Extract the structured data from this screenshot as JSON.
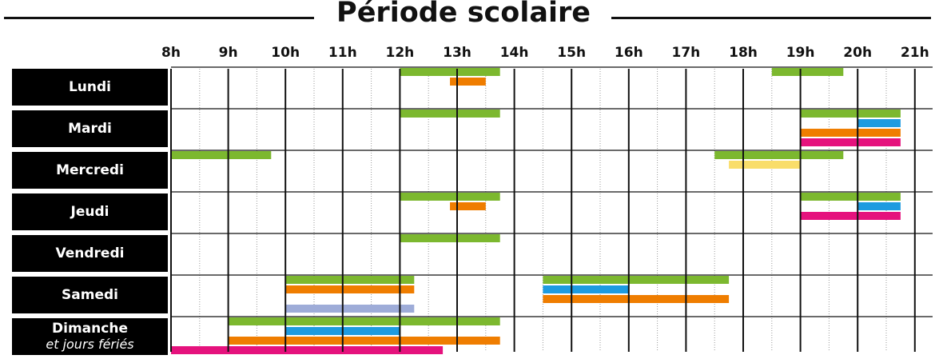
{
  "title": "Période scolaire",
  "chart_data": {
    "type": "gantt",
    "title": "Période scolaire",
    "hours": [
      "8h",
      "9h",
      "10h",
      "11h",
      "12h",
      "13h",
      "14h",
      "15h",
      "16h",
      "17h",
      "18h",
      "19h",
      "20h",
      "21h"
    ],
    "x_range": [
      8,
      21
    ],
    "colors": {
      "green": "#7cb82f",
      "orange": "#ef7d00",
      "blue": "#1e9be0",
      "magenta": "#e5127d",
      "yellow": "#f9dd6a",
      "lavender": "#9eacd8"
    },
    "days": [
      {
        "name": "Lundi",
        "sub": "",
        "bars": [
          {
            "start": 12.0,
            "end": 13.75,
            "color": "green"
          },
          {
            "start": 12.875,
            "end": 13.5,
            "color": "orange"
          },
          {
            "start": 18.5,
            "end": 19.75,
            "color": "green"
          }
        ]
      },
      {
        "name": "Mardi",
        "sub": "",
        "bars": [
          {
            "start": 12.0,
            "end": 13.75,
            "color": "green"
          },
          {
            "start": 19.0,
            "end": 20.75,
            "color": "green"
          },
          {
            "start": 20.0,
            "end": 20.75,
            "color": "blue"
          },
          {
            "start": 19.0,
            "end": 20.75,
            "color": "orange"
          },
          {
            "start": 19.0,
            "end": 20.75,
            "color": "magenta"
          }
        ]
      },
      {
        "name": "Mercredi",
        "sub": "",
        "bars": [
          {
            "start": 8.0,
            "end": 9.75,
            "color": "green"
          },
          {
            "start": 17.5,
            "end": 19.75,
            "color": "green"
          },
          {
            "start": 17.75,
            "end": 19.0,
            "color": "yellow"
          }
        ]
      },
      {
        "name": "Jeudi",
        "sub": "",
        "bars": [
          {
            "start": 12.0,
            "end": 13.75,
            "color": "green"
          },
          {
            "start": 12.875,
            "end": 13.5,
            "color": "orange"
          },
          {
            "start": 19.0,
            "end": 20.75,
            "color": "green"
          },
          {
            "start": 20.0,
            "end": 20.75,
            "color": "blue"
          },
          {
            "start": 19.0,
            "end": 20.75,
            "color": "magenta"
          }
        ]
      },
      {
        "name": "Vendredi",
        "sub": "",
        "bars": [
          {
            "start": 12.0,
            "end": 13.75,
            "color": "green"
          }
        ]
      },
      {
        "name": "Samedi",
        "sub": "",
        "bars": [
          {
            "start": 10.0,
            "end": 12.25,
            "color": "green"
          },
          {
            "start": 10.0,
            "end": 12.25,
            "color": "orange"
          },
          {
            "start": 10.0,
            "end": 12.25,
            "color": "lavender"
          },
          {
            "start": 14.5,
            "end": 17.75,
            "color": "green"
          },
          {
            "start": 14.5,
            "end": 16.0,
            "color": "blue"
          },
          {
            "start": 14.5,
            "end": 17.75,
            "color": "orange"
          }
        ]
      },
      {
        "name": "Dimanche",
        "sub": "et jours fériés",
        "bars": [
          {
            "start": 9.0,
            "end": 13.75,
            "color": "green"
          },
          {
            "start": 10.0,
            "end": 12.0,
            "color": "blue"
          },
          {
            "start": 9.0,
            "end": 13.75,
            "color": "orange"
          },
          {
            "start": 8.0,
            "end": 12.75,
            "color": "magenta"
          }
        ]
      }
    ]
  }
}
